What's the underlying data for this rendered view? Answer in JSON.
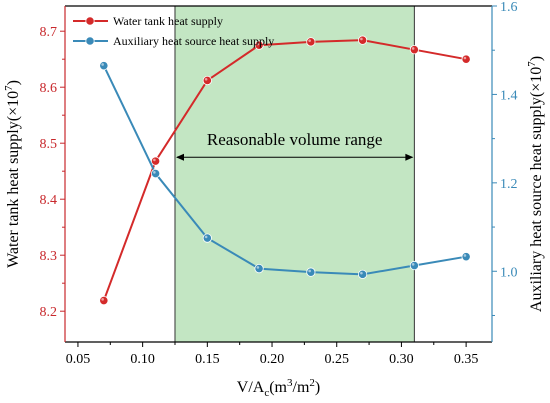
{
  "chart_data": {
    "type": "line",
    "x": [
      0.07,
      0.11,
      0.15,
      0.19,
      0.23,
      0.27,
      0.31,
      0.35
    ],
    "series": [
      {
        "name": "Water tank heat supply",
        "axis": "left",
        "color": "#d42a2a",
        "values": [
          8.219,
          8.468,
          8.612,
          8.675,
          8.681,
          8.684,
          8.667,
          8.65
        ]
      },
      {
        "name": "Auxiliary heat source heat supply",
        "axis": "right",
        "color": "#3a8ab8",
        "values": [
          1.465,
          1.221,
          1.075,
          1.006,
          0.998,
          0.993,
          1.013,
          1.033
        ]
      }
    ],
    "xlabel": {
      "main": "V/A",
      "sub": "c",
      "rest": "(m",
      "sup1": "3",
      "mid": "/m",
      "sup2": "2",
      "end": ")"
    },
    "ylabel_left": {
      "main": "Water tank heat supply(×10",
      "sup": "7",
      "end": ")"
    },
    "ylabel_right": {
      "main": "Auxiliary heat source heat supply(×10",
      "sup": "7",
      "end": ")"
    },
    "xlim": [
      0.04,
      0.37
    ],
    "ylim_left": [
      8.145,
      8.745
    ],
    "ylim_right": [
      0.84,
      1.6
    ],
    "xticks": [
      "0.05",
      "0.10",
      "0.15",
      "0.20",
      "0.25",
      "0.30",
      "0.35"
    ],
    "yticks_left": [
      "8.2",
      "8.3",
      "8.4",
      "8.5",
      "8.6",
      "8.7"
    ],
    "yticks_right": [
      "1.0",
      "1.2",
      "1.4",
      "1.6"
    ],
    "shaded_region": {
      "x_range": [
        0.125,
        0.31
      ],
      "color": "#c3e6c3",
      "label": "Reasonable volume range"
    },
    "legend_position": "top-left",
    "grid": false,
    "axis_colors": {
      "left": "#c8282c",
      "right": "#3a8ab8",
      "bottom": "#000000"
    }
  }
}
